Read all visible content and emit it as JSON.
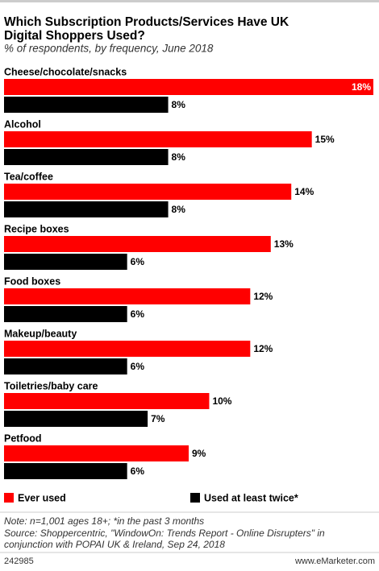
{
  "chart_data": {
    "type": "bar",
    "orientation": "horizontal",
    "title": "Which Subscription Products/Services Have UK Digital Shoppers Used?",
    "subtitle": "% of respondents, by frequency, June 2018",
    "categories": [
      "Cheese/chocolate/snacks",
      "Alcohol",
      "Tea/coffee",
      "Recipe boxes",
      "Food boxes",
      "Makeup/beauty",
      "Toiletries/baby care",
      "Petfood"
    ],
    "series": [
      {
        "name": "Ever used",
        "color": "#ff0000",
        "values": [
          18,
          15,
          14,
          13,
          12,
          12,
          10,
          9
        ],
        "value_labels": [
          "18%",
          "15%",
          "14%",
          "13%",
          "12%",
          "12%",
          "10%",
          "9%"
        ]
      },
      {
        "name": "Used at least twice*",
        "color": "#000000",
        "values": [
          8,
          8,
          8,
          6,
          6,
          6,
          7,
          6
        ],
        "value_labels": [
          "8%",
          "8%",
          "8%",
          "6%",
          "6%",
          "6%",
          "7%",
          "6%"
        ]
      }
    ],
    "xlim": [
      0,
      18
    ],
    "note": "Note: n=1,001 ages 18+; *in the past 3 months",
    "source": [
      "Source: Shoppercentric, \"WindowOn: Trends Report - Online Disrupters\" in",
      "conjunction with POPAI UK & Ireland, Sep 24, 2018"
    ],
    "chart_id": "242985",
    "brand": "www.eMarketer.com"
  }
}
